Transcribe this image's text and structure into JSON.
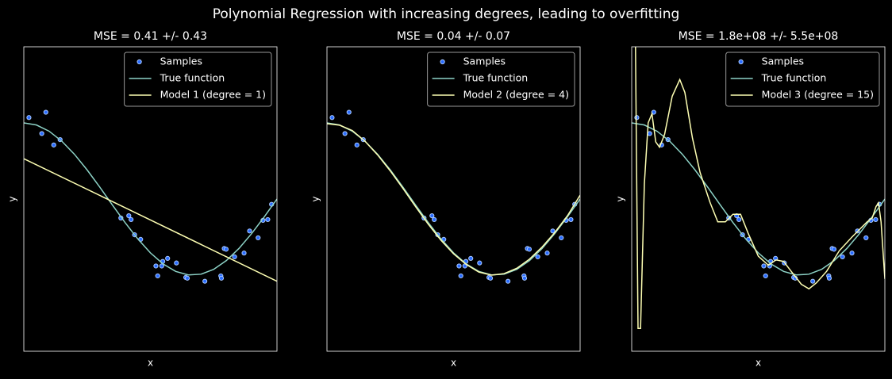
{
  "title": "Polynomial Regression with increasing degrees, leading to overfitting",
  "chart_data": [
    {
      "type": "line",
      "title": "MSE = 0.41 +/- 0.43",
      "xlabel": "x",
      "ylabel": "y",
      "xlim": [
        0,
        1
      ],
      "ylim": [
        -2,
        2
      ],
      "legend": "upper right",
      "series": [
        {
          "name": "Samples",
          "kind": "scatter",
          "color": "#2a6cff",
          "edgecolor": "#a8c8ff",
          "x": [
            0.0202,
            0.071,
            0.0871,
            0.1183,
            0.1434,
            0.3834,
            0.4147,
            0.4237,
            0.4376,
            0.4615,
            0.5218,
            0.5289,
            0.5449,
            0.5488,
            0.568,
            0.6028,
            0.6399,
            0.6459,
            0.7152,
            0.7782,
            0.7805,
            0.7917,
            0.7992,
            0.8326,
            0.87,
            0.8918,
            0.9256,
            0.9447,
            0.9637,
            0.9786
          ],
          "values": [
            1.07,
            0.86,
            1.14,
            0.71,
            0.78,
            -0.25,
            -0.22,
            -0.27,
            -0.47,
            -0.53,
            -0.88,
            -1.01,
            -0.88,
            -0.82,
            -0.78,
            -0.84,
            -1.03,
            -1.04,
            -1.08,
            -1.01,
            -1.04,
            -0.65,
            -0.66,
            -0.76,
            -0.71,
            -0.42,
            -0.51,
            -0.28,
            -0.27,
            -0.07
          ]
        },
        {
          "name": "True function",
          "kind": "line",
          "color": "#8dd3c7",
          "x": [
            0,
            0.05,
            0.1,
            0.15,
            0.2,
            0.25,
            0.3,
            0.35,
            0.4,
            0.45,
            0.5,
            0.55,
            0.6,
            0.65,
            0.7,
            0.75,
            0.8,
            0.85,
            0.9,
            0.95,
            1
          ],
          "values": [
            1,
            0.9724,
            0.891,
            0.7604,
            0.5878,
            0.3827,
            0.1564,
            -0.0785,
            -0.309,
            -0.5225,
            -0.7071,
            -0.8526,
            -0.9511,
            -0.9969,
            -0.9877,
            -0.9239,
            -0.809,
            -0.6494,
            -0.454,
            -0.2334,
            0
          ]
        },
        {
          "name": "Model 1 (degree = 1)",
          "kind": "line",
          "color": "#feffb3",
          "x": [
            0,
            1
          ],
          "values": [
            0.53,
            -1.08
          ]
        }
      ]
    },
    {
      "type": "line",
      "title": "MSE = 0.04 +/- 0.07",
      "xlabel": "x",
      "ylabel": "y",
      "xlim": [
        0,
        1
      ],
      "ylim": [
        -2,
        2
      ],
      "legend": "upper right",
      "series": [
        {
          "name": "Samples",
          "kind": "scatter",
          "color": "#2a6cff",
          "edgecolor": "#a8c8ff",
          "x": [
            0.0202,
            0.071,
            0.0871,
            0.1183,
            0.1434,
            0.3834,
            0.4147,
            0.4237,
            0.4376,
            0.4615,
            0.5218,
            0.5289,
            0.5449,
            0.5488,
            0.568,
            0.6028,
            0.6399,
            0.6459,
            0.7152,
            0.7782,
            0.7805,
            0.7917,
            0.7992,
            0.8326,
            0.87,
            0.8918,
            0.9256,
            0.9447,
            0.9637,
            0.9786
          ],
          "values": [
            1.07,
            0.86,
            1.14,
            0.71,
            0.78,
            -0.25,
            -0.22,
            -0.27,
            -0.47,
            -0.53,
            -0.88,
            -1.01,
            -0.88,
            -0.82,
            -0.78,
            -0.84,
            -1.03,
            -1.04,
            -1.08,
            -1.01,
            -1.04,
            -0.65,
            -0.66,
            -0.76,
            -0.71,
            -0.42,
            -0.51,
            -0.28,
            -0.27,
            -0.07
          ]
        },
        {
          "name": "True function",
          "kind": "line",
          "color": "#8dd3c7",
          "x": [
            0,
            0.05,
            0.1,
            0.15,
            0.2,
            0.25,
            0.3,
            0.35,
            0.4,
            0.45,
            0.5,
            0.55,
            0.6,
            0.65,
            0.7,
            0.75,
            0.8,
            0.85,
            0.9,
            0.95,
            1
          ],
          "values": [
            1,
            0.9724,
            0.891,
            0.7604,
            0.5878,
            0.3827,
            0.1564,
            -0.0785,
            -0.309,
            -0.5225,
            -0.7071,
            -0.8526,
            -0.9511,
            -0.9969,
            -0.9877,
            -0.9239,
            -0.809,
            -0.6494,
            -0.454,
            -0.2334,
            0
          ]
        },
        {
          "name": "Model 2 (degree = 4)",
          "kind": "line",
          "color": "#feffb3",
          "x": [
            0,
            0.05,
            0.1,
            0.15,
            0.2,
            0.25,
            0.3,
            0.35,
            0.4,
            0.45,
            0.5,
            0.55,
            0.6,
            0.65,
            0.7,
            0.75,
            0.8,
            0.85,
            0.9,
            0.95,
            1
          ],
          "values": [
            0.99,
            0.97,
            0.9,
            0.76,
            0.58,
            0.37,
            0.14,
            -0.1,
            -0.33,
            -0.54,
            -0.72,
            -0.86,
            -0.96,
            -1,
            -0.98,
            -0.91,
            -0.79,
            -0.63,
            -0.44,
            -0.22,
            0.05
          ]
        }
      ]
    },
    {
      "type": "line",
      "title": "MSE = 1.8e+08 +/- 5.5e+08",
      "xlabel": "x",
      "ylabel": "y",
      "xlim": [
        0,
        1
      ],
      "ylim": [
        -2,
        2
      ],
      "legend": "upper right",
      "series": [
        {
          "name": "Samples",
          "kind": "scatter",
          "color": "#2a6cff",
          "edgecolor": "#a8c8ff",
          "x": [
            0.0202,
            0.071,
            0.0871,
            0.1183,
            0.1434,
            0.3834,
            0.4147,
            0.4237,
            0.4376,
            0.4615,
            0.5218,
            0.5289,
            0.5449,
            0.5488,
            0.568,
            0.6028,
            0.6399,
            0.6459,
            0.7152,
            0.7782,
            0.7805,
            0.7917,
            0.7992,
            0.8326,
            0.87,
            0.8918,
            0.9256,
            0.9447,
            0.9637,
            0.9786
          ],
          "values": [
            1.07,
            0.86,
            1.14,
            0.71,
            0.78,
            -0.25,
            -0.22,
            -0.27,
            -0.47,
            -0.53,
            -0.88,
            -1.01,
            -0.88,
            -0.82,
            -0.78,
            -0.84,
            -1.03,
            -1.04,
            -1.08,
            -1.01,
            -1.04,
            -0.65,
            -0.66,
            -0.76,
            -0.71,
            -0.42,
            -0.51,
            -0.28,
            -0.27,
            -0.07
          ]
        },
        {
          "name": "True function",
          "kind": "line",
          "color": "#8dd3c7",
          "x": [
            0,
            0.05,
            0.1,
            0.15,
            0.2,
            0.25,
            0.3,
            0.35,
            0.4,
            0.45,
            0.5,
            0.55,
            0.6,
            0.65,
            0.7,
            0.75,
            0.8,
            0.85,
            0.9,
            0.95,
            1
          ],
          "values": [
            1,
            0.9724,
            0.891,
            0.7604,
            0.5878,
            0.3827,
            0.1564,
            -0.0785,
            -0.309,
            -0.5225,
            -0.7071,
            -0.8526,
            -0.9511,
            -0.9969,
            -0.9877,
            -0.9239,
            -0.809,
            -0.6494,
            -0.454,
            -0.2334,
            0
          ]
        },
        {
          "name": "Model 3 (degree = 15)",
          "kind": "line",
          "color": "#feffb3",
          "x": [
            0,
            0.015,
            0.025,
            0.035,
            0.05,
            0.065,
            0.08,
            0.095,
            0.11,
            0.13,
            0.16,
            0.19,
            0.21,
            0.24,
            0.27,
            0.31,
            0.34,
            0.37,
            0.4,
            0.43,
            0.46,
            0.5,
            0.54,
            0.57,
            0.6,
            0.63,
            0.67,
            0.7,
            0.73,
            0.77,
            0.82,
            0.87,
            0.9,
            0.93,
            0.95,
            0.965,
            0.975,
            0.985,
            1
          ],
          "values": [
            6,
            2,
            -1.7,
            -1.7,
            0.2,
            1,
            1.12,
            0.75,
            0.68,
            0.85,
            1.35,
            1.57,
            1.4,
            0.8,
            0.35,
            -0.05,
            -0.3,
            -0.3,
            -0.2,
            -0.2,
            -0.45,
            -0.75,
            -0.87,
            -0.8,
            -0.82,
            -0.95,
            -1.12,
            -1.18,
            -1.1,
            -0.95,
            -0.68,
            -0.5,
            -0.4,
            -0.3,
            -0.25,
            -0.1,
            -0.05,
            -0.3,
            -1.05
          ]
        }
      ]
    }
  ]
}
